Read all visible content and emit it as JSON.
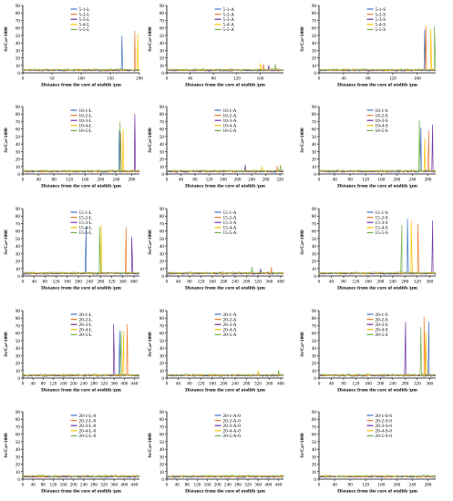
{
  "figure": {
    "ylabel": "Sr/Ca×1000",
    "xlabel": "Distance from the core of otolith /μm",
    "yticks": [
      0,
      10,
      20,
      30,
      40,
      50,
      60,
      70,
      80,
      90
    ],
    "colors": [
      "#4472C4",
      "#ED7D31",
      "#7030A0",
      "#FFC000",
      "#70AD47"
    ]
  },
  "chart_data": [
    {
      "type": "line",
      "legend": [
        "5-1-L",
        "5-2-L",
        "5-3-L",
        "5-4-L",
        "5-5-L"
      ],
      "xticks": [
        0,
        50,
        100,
        150,
        200
      ],
      "xlim": [
        0,
        200
      ],
      "ylim": [
        0,
        90
      ],
      "x": [
        0,
        170,
        175,
        190,
        195
      ],
      "series": [
        {
          "name": "5-1-L",
          "peaks": [
            [
              170,
              50
            ]
          ]
        },
        {
          "name": "5-2-L",
          "peaks": [
            [
              192,
              56
            ]
          ]
        },
        {
          "name": "5-3-L",
          "peaks": []
        },
        {
          "name": "5-4-L",
          "peaks": [
            [
              197,
              52
            ]
          ]
        },
        {
          "name": "5-5-L",
          "peaks": []
        }
      ]
    },
    {
      "type": "line",
      "legend": [
        "5-1-A",
        "5-2-A",
        "5-3-A",
        "5-4-A",
        "5-5-A"
      ],
      "xticks": [
        0,
        40,
        80,
        120,
        160
      ],
      "xlim": [
        0,
        200
      ],
      "ylim": [
        0,
        90
      ],
      "series": [
        {
          "name": "5-1-A",
          "peaks": []
        },
        {
          "name": "5-2-A",
          "peaks": [
            [
              166,
              12
            ]
          ]
        },
        {
          "name": "5-3-A",
          "peaks": [
            [
              175,
              10
            ]
          ]
        },
        {
          "name": "5-4-A",
          "peaks": [
            [
              160,
              13
            ]
          ]
        },
        {
          "name": "5-5-A",
          "peaks": [
            [
              186,
              12
            ]
          ]
        }
      ]
    },
    {
      "type": "line",
      "legend": [
        "5-1-S",
        "5-2-S",
        "5-3-S",
        "5-4-S",
        "5-5-S"
      ],
      "xticks": [
        0,
        40,
        80,
        120,
        160
      ],
      "xlim": [
        0,
        190
      ],
      "ylim": [
        0,
        90
      ],
      "series": [
        {
          "name": "5-1-S",
          "peaks": [
            [
              172,
              58
            ]
          ]
        },
        {
          "name": "5-2-S",
          "peaks": [
            [
              174,
              63
            ]
          ]
        },
        {
          "name": "5-3-S",
          "peaks": []
        },
        {
          "name": "5-4-S",
          "peaks": [
            [
              182,
              59
            ]
          ]
        },
        {
          "name": "5-5-S",
          "peaks": [
            [
              188,
              62
            ]
          ]
        }
      ]
    },
    {
      "type": "line",
      "legend": [
        "10-1-L",
        "10-2-L",
        "10-3-L",
        "10-4-L",
        "10-5-L"
      ],
      "xticks": [
        0,
        40,
        80,
        120,
        160,
        200,
        240,
        280
      ],
      "xlim": [
        0,
        300
      ],
      "ylim": [
        0,
        90
      ],
      "series": [
        {
          "name": "10-1-L",
          "peaks": [
            [
              248,
              58
            ]
          ]
        },
        {
          "name": "10-2-L",
          "peaks": [
            [
              252,
              55
            ]
          ]
        },
        {
          "name": "10-3-L",
          "peaks": [
            [
              288,
              80
            ]
          ]
        },
        {
          "name": "10-4-L",
          "peaks": [
            [
              258,
              60
            ]
          ]
        },
        {
          "name": "10-5-L",
          "peaks": [
            [
              250,
              70
            ]
          ]
        }
      ]
    },
    {
      "type": "line",
      "legend": [
        "10-1-A",
        "10-2-A",
        "10-3-A",
        "10-4-A",
        "10-5-A"
      ],
      "xticks": [
        0,
        40,
        80,
        120,
        160,
        200,
        240,
        280,
        320
      ],
      "xlim": [
        0,
        330
      ],
      "ylim": [
        0,
        90
      ],
      "series": [
        {
          "name": "10-1-A",
          "peaks": []
        },
        {
          "name": "10-2-A",
          "peaks": [
            [
              312,
              11
            ]
          ]
        },
        {
          "name": "10-3-A",
          "peaks": [
            [
              222,
              12
            ]
          ]
        },
        {
          "name": "10-4-A",
          "peaks": [
            [
              268,
              10
            ]
          ]
        },
        {
          "name": "10-5-A",
          "peaks": [
            [
              322,
              12
            ]
          ]
        }
      ]
    },
    {
      "type": "line",
      "legend": [
        "10-1-S",
        "10-2-S",
        "10-3-S",
        "10-4-S",
        "10-5-S"
      ],
      "xticks": [
        0,
        40,
        80,
        120,
        160,
        200,
        240,
        280
      ],
      "xlim": [
        0,
        300
      ],
      "ylim": [
        0,
        90
      ],
      "series": [
        {
          "name": "10-1-S",
          "peaks": [
            [
              262,
              62
            ]
          ]
        },
        {
          "name": "10-2-S",
          "peaks": [
            [
              282,
              58
            ]
          ]
        },
        {
          "name": "10-3-S",
          "peaks": [
            [
              292,
              66
            ]
          ]
        },
        {
          "name": "10-4-S",
          "peaks": [
            [
              272,
              48
            ]
          ]
        },
        {
          "name": "10-5-S",
          "peaks": [
            [
              258,
              72
            ]
          ]
        }
      ]
    },
    {
      "type": "line",
      "legend": [
        "15-1-L",
        "15-2-L",
        "15-3-L",
        "15-4-L",
        "15-5-L"
      ],
      "xticks": [
        0,
        40,
        80,
        120,
        160,
        200,
        240,
        280,
        320,
        360,
        400
      ],
      "xlim": [
        0,
        420
      ],
      "ylim": [
        0,
        90
      ],
      "series": [
        {
          "name": "15-1-L",
          "peaks": [
            [
              228,
              66
            ]
          ]
        },
        {
          "name": "15-2-L",
          "peaks": [
            [
              372,
              65
            ]
          ]
        },
        {
          "name": "15-3-L",
          "peaks": [
            [
              392,
              52
            ]
          ]
        },
        {
          "name": "15-4-L",
          "peaks": [
            [
              282,
              68
            ]
          ]
        },
        {
          "name": "15-5-L",
          "peaks": [
            [
              276,
              66
            ]
          ]
        }
      ]
    },
    {
      "type": "line",
      "legend": [
        "15-1-A",
        "15-2-A",
        "15-3-A",
        "15-4-A",
        "15-5-A"
      ],
      "xticks": [
        0,
        40,
        80,
        120,
        160,
        200,
        240,
        280,
        320,
        360,
        400
      ],
      "xlim": [
        0,
        410
      ],
      "ylim": [
        0,
        90
      ],
      "series": [
        {
          "name": "15-1-A",
          "peaks": []
        },
        {
          "name": "15-2-A",
          "peaks": [
            [
              368,
              12
            ]
          ]
        },
        {
          "name": "15-3-A",
          "peaks": [
            [
              330,
              10
            ]
          ]
        },
        {
          "name": "15-4-A",
          "peaks": []
        },
        {
          "name": "15-5-A",
          "peaks": [
            [
              300,
              12
            ]
          ]
        }
      ]
    },
    {
      "type": "line",
      "legend": [
        "15-1-S",
        "15-2-S",
        "15-3-S",
        "15-4-S",
        "15-5-S"
      ],
      "xticks": [
        0,
        40,
        80,
        120,
        160,
        200,
        240,
        280,
        320,
        360
      ],
      "xlim": [
        0,
        380
      ],
      "ylim": [
        0,
        90
      ],
      "series": [
        {
          "name": "15-1-S",
          "peaks": [
            [
              288,
              76
            ]
          ]
        },
        {
          "name": "15-2-S",
          "peaks": [
            [
              322,
              70
            ]
          ]
        },
        {
          "name": "15-3-S",
          "peaks": [
            [
              370,
              74
            ]
          ]
        },
        {
          "name": "15-4-S",
          "peaks": [
            [
              300,
              74
            ]
          ]
        },
        {
          "name": "15-5-S",
          "peaks": [
            [
              270,
              68
            ]
          ]
        }
      ]
    },
    {
      "type": "line",
      "legend": [
        "20-1-L",
        "20-2-L",
        "20-3-L",
        "20-4-L",
        "20-5-L"
      ],
      "xticks": [
        0,
        40,
        80,
        120,
        160,
        200,
        240,
        280,
        320,
        360,
        400,
        440
      ],
      "xlim": [
        0,
        460
      ],
      "ylim": [
        0,
        90
      ],
      "series": [
        {
          "name": "20-1-L",
          "peaks": [
            [
              382,
              63
            ]
          ]
        },
        {
          "name": "20-2-L",
          "peaks": [
            [
              412,
              72
            ]
          ]
        },
        {
          "name": "20-3-L",
          "peaks": [
            [
              358,
              72
            ]
          ]
        },
        {
          "name": "20-4-L",
          "peaks": [
            [
              398,
              63
            ]
          ]
        },
        {
          "name": "20-5-L",
          "peaks": [
            [
              388,
              63
            ]
          ]
        }
      ]
    },
    {
      "type": "line",
      "legend": [
        "20-1-A",
        "20-2-A",
        "20-3-A",
        "20-4-A",
        "20-5-A"
      ],
      "xticks": [
        0,
        40,
        80,
        120,
        160,
        200,
        240,
        280,
        320,
        360,
        400
      ],
      "xlim": [
        0,
        410
      ],
      "ylim": [
        0,
        90
      ],
      "series": [
        {
          "name": "20-1-A",
          "peaks": []
        },
        {
          "name": "20-2-A",
          "peaks": []
        },
        {
          "name": "20-3-A",
          "peaks": []
        },
        {
          "name": "20-4-A",
          "peaks": [
            [
              322,
              10
            ]
          ]
        },
        {
          "name": "20-5-A",
          "peaks": [
            [
              392,
              11
            ]
          ]
        }
      ]
    },
    {
      "type": "line",
      "legend": [
        "20-1-S",
        "20-2-S",
        "20-3-S",
        "20-4-S",
        "20-5-S"
      ],
      "xticks": [
        0,
        40,
        80,
        120,
        160,
        200,
        240,
        280,
        320,
        360
      ],
      "xlim": [
        0,
        380
      ],
      "ylim": [
        0,
        90
      ],
      "series": [
        {
          "name": "20-1-S",
          "peaks": [
            [
              358,
              75
            ]
          ]
        },
        {
          "name": "20-2-S",
          "peaks": [
            [
              342,
              82
            ]
          ]
        },
        {
          "name": "20-3-S",
          "peaks": [
            [
              282,
              75
            ]
          ]
        },
        {
          "name": "20-4-S",
          "peaks": [
            [
              348,
              62
            ]
          ]
        },
        {
          "name": "20-5-S",
          "peaks": [
            [
              332,
              68
            ]
          ]
        }
      ]
    },
    {
      "type": "line",
      "legend": [
        "20-1-L-0",
        "20-2-L-0",
        "20-3-L-0",
        "20-4-L-0",
        "20-5-L-0"
      ],
      "xticks": [
        0,
        40,
        80,
        120,
        160,
        200,
        240,
        280,
        320,
        360,
        400,
        440
      ],
      "xlim": [
        0,
        460
      ],
      "ylim": [
        0,
        90
      ],
      "series": [
        {
          "name": "20-1-L-0",
          "peaks": []
        },
        {
          "name": "20-2-L-0",
          "peaks": []
        },
        {
          "name": "20-3-L-0",
          "peaks": []
        },
        {
          "name": "20-4-L-0",
          "peaks": [
            [
              348,
              5
            ]
          ]
        },
        {
          "name": "20-5-L-0",
          "peaks": []
        }
      ]
    },
    {
      "type": "line",
      "legend": [
        "20-1-A-0",
        "20-2-A-0",
        "20-3-A-0",
        "20-4-A-0",
        "20-5-A-0"
      ],
      "xticks": [
        0,
        40,
        80,
        120,
        160,
        200,
        240,
        280,
        320,
        360,
        400,
        440
      ],
      "xlim": [
        0,
        460
      ],
      "ylim": [
        0,
        90
      ],
      "series": [
        {
          "name": "20-1-A-0",
          "peaks": []
        },
        {
          "name": "20-2-A-0",
          "peaks": []
        },
        {
          "name": "20-3-A-0",
          "peaks": []
        },
        {
          "name": "20-4-A-0",
          "peaks": []
        },
        {
          "name": "20-5-A-0",
          "peaks": []
        }
      ]
    },
    {
      "type": "line",
      "legend": [
        "20-1-S-0",
        "20-2-S-0",
        "20-3-S-0",
        "20-4-S-0",
        "20-5-S-0"
      ],
      "xticks": [
        0,
        40,
        80,
        120,
        160,
        200,
        240,
        280
      ],
      "xlim": [
        0,
        300
      ],
      "ylim": [
        0,
        90
      ],
      "series": [
        {
          "name": "20-1-S-0",
          "peaks": []
        },
        {
          "name": "20-2-S-0",
          "peaks": []
        },
        {
          "name": "20-3-S-0",
          "peaks": [
            [
              268,
              5
            ]
          ]
        },
        {
          "name": "20-4-S-0",
          "peaks": []
        },
        {
          "name": "20-5-S-0",
          "peaks": []
        }
      ]
    }
  ]
}
